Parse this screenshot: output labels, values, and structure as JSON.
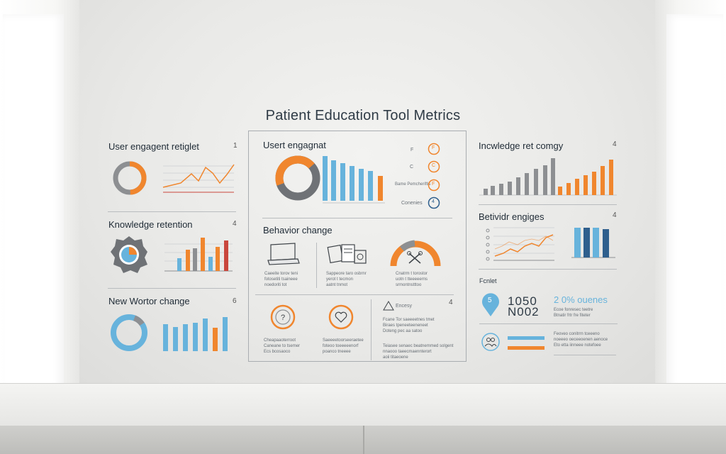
{
  "title": "Patient Education Tool Metrics",
  "colors": {
    "orange": "#f0862e",
    "blue": "#67b3dc",
    "gray": "#8d8f92",
    "red": "#c9473d",
    "navy": "#2f5f8d"
  },
  "left": {
    "engagement": {
      "title": "User engagent retiglet",
      "num": "1"
    },
    "retention": {
      "title": "Knowledge retention",
      "num": "4"
    },
    "worker": {
      "title": "New Wortor change",
      "num": "6"
    }
  },
  "center": {
    "engagement": {
      "title": "Usert engagnat",
      "labels": [
        "F",
        "C",
        "F",
        "4"
      ],
      "label_texts": [
        "F",
        "C",
        "Bame Pemcheriftis",
        "Conenies"
      ]
    },
    "behavior": {
      "title": "Behavior change",
      "captions": [
        "Caeeite torov teni\nfotosetiti tsaineee\nnoedoriti tot",
        "Sappeore taro osbrnr\nyerot t tecmon\naatnt tnmot",
        "Cnatrm t torostor\nuotn t tteeeeerns\nsrmontnstttoo"
      ]
    },
    "bottom": {
      "label": "Encesy",
      "captions": [
        "Cheapaaoterroot\nCaneane to tsemer\nEcs bcosaoco",
        "Saeeeetoorseeraetee\nfoteoo toeeeeenorf\npoanco tneeee",
        "Fcane Tor saeeeetnes tmet\nBiraes tpeneeteeneneet\nDoteng pec aa satoo",
        "Teiasee senaec beatnemmed solgent\nnnaooo taeecmaennterort\naoii titaeoene"
      ]
    }
  },
  "right": {
    "knowledge": {
      "title": "Incwledge ret comgy",
      "num": "4"
    },
    "behavior": {
      "title": "Betividr engiges",
      "num": "4"
    },
    "footer": {
      "label": "Fcnlet",
      "pin": "5",
      "digits_top": "1050",
      "digits_bottom": "N002",
      "pct": "2 0% ouenes",
      "captions": [
        "Ecoe fonresec teetre\nBtnatir frtr fre fiteter",
        "Feoveo conitrrn tceeeno\nnoeeeo oeceeoenen aenoce\nEto etta iinneee notefoee"
      ]
    }
  }
}
